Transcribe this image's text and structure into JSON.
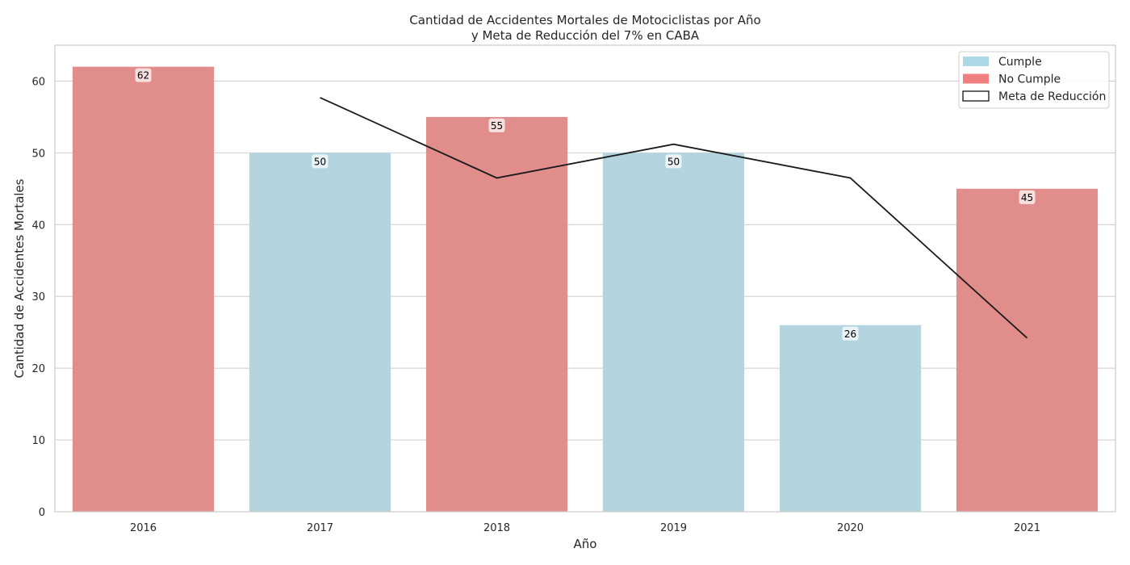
{
  "chart_data": {
    "type": "bar",
    "title_line1": "Cantidad de Accidentes Mortales de Motociclistas por Año",
    "title_line2": "y Meta de Reducción del 7% en CABA",
    "xlabel": "Año",
    "ylabel": "Cantidad de Accidentes Mortales",
    "categories": [
      "2016",
      "2017",
      "2018",
      "2019",
      "2020",
      "2021"
    ],
    "values": [
      62,
      50,
      55,
      50,
      26,
      45
    ],
    "status": [
      "No Cumple",
      "Cumple",
      "No Cumple",
      "Cumple",
      "Cumple",
      "No Cumple"
    ],
    "target_line": {
      "name": "Meta de Reducción",
      "x": [
        "2017",
        "2018",
        "2019",
        "2020",
        "2021"
      ],
      "values": [
        57.7,
        46.5,
        51.2,
        46.5,
        24.2
      ],
      "color": "#1a1a1a"
    },
    "ylim": [
      0,
      65
    ],
    "yticks": [
      0,
      10,
      20,
      30,
      40,
      50,
      60
    ],
    "grid": true,
    "legend": {
      "placement": "top-right",
      "entries": [
        {
          "label": "Cumple",
          "color": "#add8e6",
          "kind": "patch"
        },
        {
          "label": "No Cumple",
          "color": "#f08080",
          "kind": "patch"
        },
        {
          "label": "Meta de Reducción",
          "color": "#ffffff",
          "kind": "outline"
        }
      ]
    },
    "colors": {
      "Cumple": "#b4d5df",
      "No Cumple": "#e18d8c",
      "grid": "#d0d0d0",
      "axes": "#cccccc"
    }
  }
}
